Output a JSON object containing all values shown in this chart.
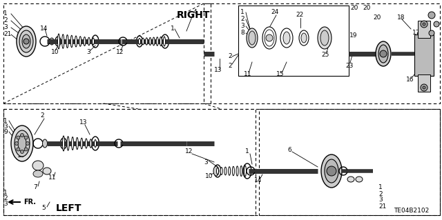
{
  "bg_color": "#ffffff",
  "line_color": "#000000",
  "text_color": "#000000",
  "diagram_code": "TE04B2102",
  "right_label": "RIGHT",
  "left_label": "LEFT",
  "fr_label": "FR.",
  "figsize": [
    6.4,
    3.19
  ],
  "dpi": 100
}
